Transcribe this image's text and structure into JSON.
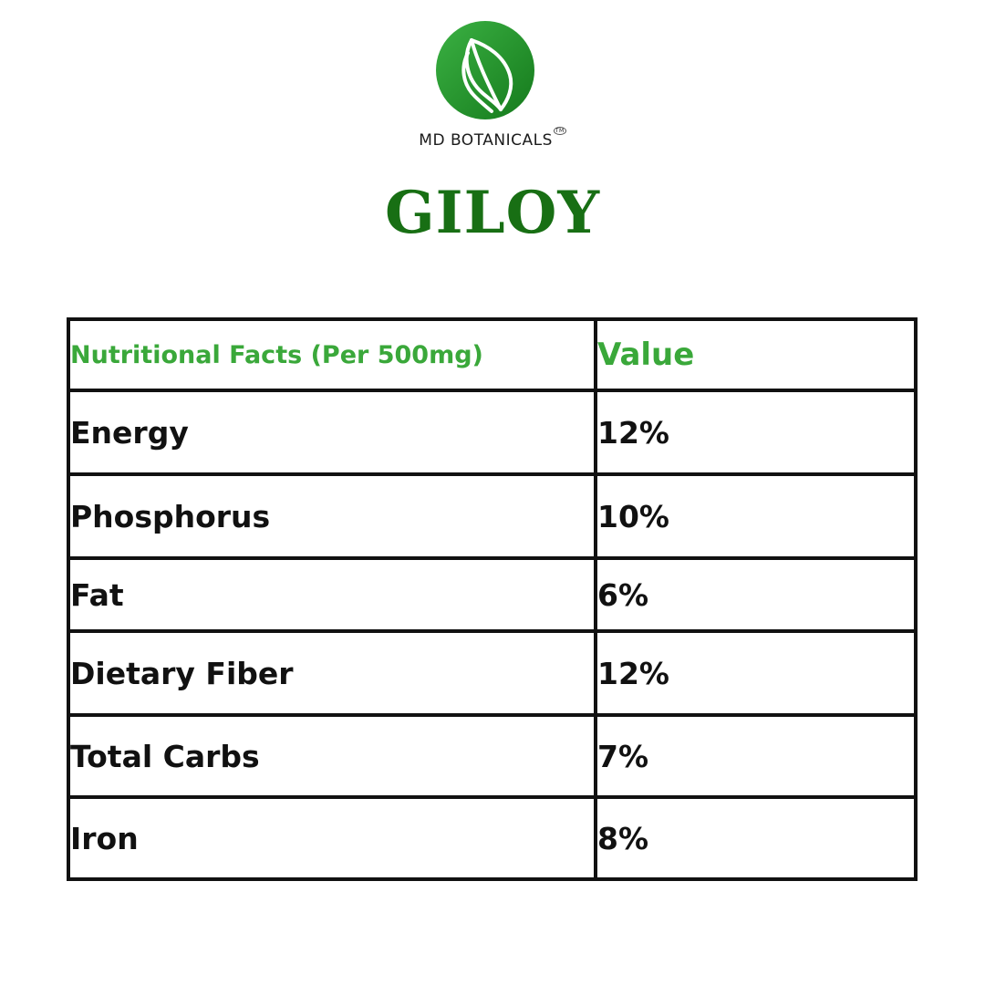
{
  "brand": {
    "name": "MD BOTANICALS",
    "trademark": "TM",
    "logo_colors": [
      "#3bb143",
      "#157a1c"
    ]
  },
  "product": {
    "title": "GILOY",
    "title_color": "#186f14"
  },
  "table": {
    "header_color": "#3aa83a",
    "headers": {
      "name": "Nutritional Facts (Per 500mg)",
      "value": "Value"
    },
    "rows": [
      {
        "name": "Energy",
        "value": "12%"
      },
      {
        "name": "Phosphorus",
        "value": "10%"
      },
      {
        "name": "Fat",
        "value": "6%"
      },
      {
        "name": "Dietary Fiber",
        "value": "12%"
      },
      {
        "name": "Total Carbs",
        "value": "7%"
      },
      {
        "name": "Iron",
        "value": "8%"
      }
    ]
  }
}
